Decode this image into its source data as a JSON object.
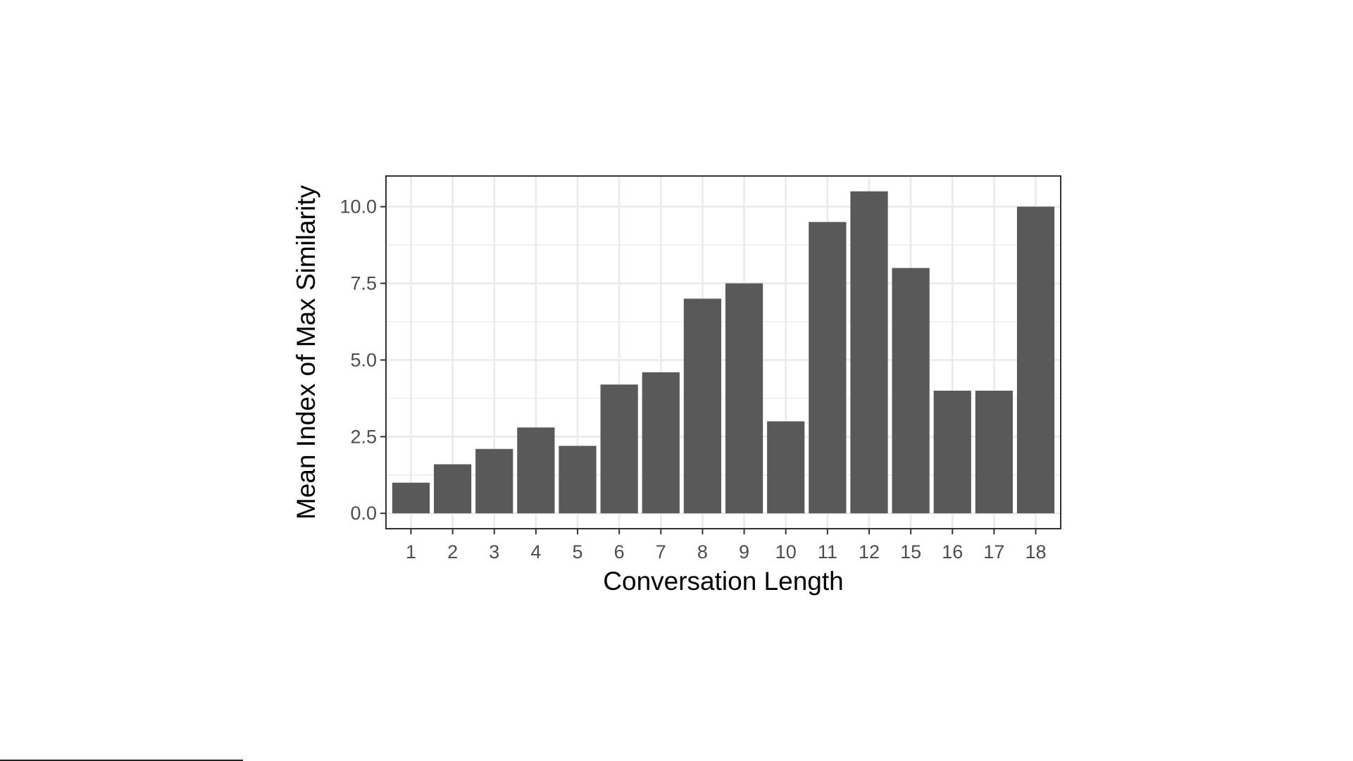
{
  "chart_data": {
    "type": "bar",
    "title": "",
    "xlabel": "Conversation Length",
    "ylabel": "Mean Index of Max Similarity",
    "categories": [
      "1",
      "2",
      "3",
      "4",
      "5",
      "6",
      "7",
      "8",
      "9",
      "10",
      "11",
      "12",
      "15",
      "16",
      "17",
      "18"
    ],
    "values": [
      1.0,
      1.6,
      2.1,
      2.8,
      2.2,
      4.2,
      4.6,
      7.0,
      7.5,
      3.0,
      9.5,
      10.5,
      8.0,
      4.0,
      4.0,
      10.0
    ],
    "ylim": [
      -0.5,
      11.0
    ],
    "yticks": [
      0.0,
      2.5,
      5.0,
      7.5,
      10.0
    ],
    "ytick_labels": [
      "0.0",
      "2.5",
      "5.0",
      "7.5",
      "10.0"
    ],
    "grid": true,
    "legend": "none",
    "colors": {
      "bar": "#595959",
      "grid": "#ebebeb",
      "panel_border": "#333333",
      "tick_label": "#4d4d4d",
      "axis_title": "#000000"
    }
  }
}
